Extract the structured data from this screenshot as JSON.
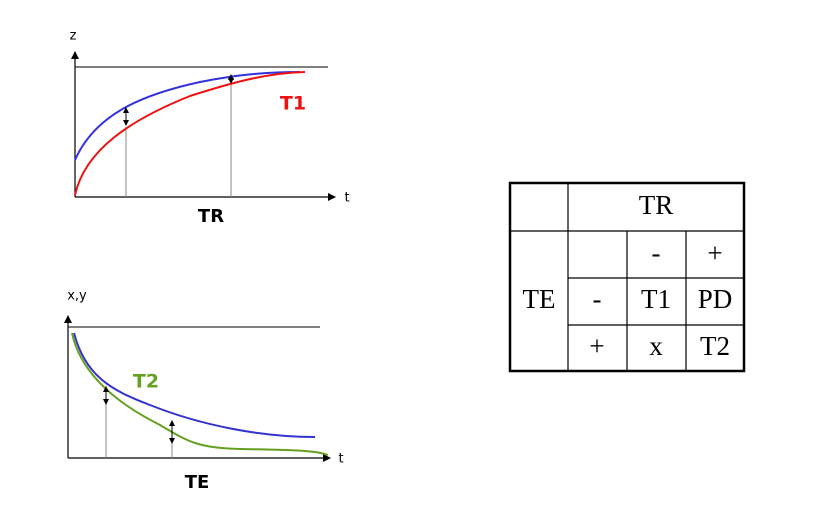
{
  "top_plot": {
    "y_label": "z",
    "x_label": "t",
    "curve_label": "T1",
    "caption": "TR"
  },
  "bottom_plot": {
    "y_label": "x,y",
    "x_label": "t",
    "curve_label": "T2",
    "caption": "TE"
  },
  "table": {
    "header": "TR",
    "row_label": "TE",
    "column_signs": [
      "-",
      "+"
    ],
    "rows": [
      [
        "-",
        "T1",
        "PD"
      ],
      [
        "+",
        "x",
        "T2"
      ]
    ]
  }
}
